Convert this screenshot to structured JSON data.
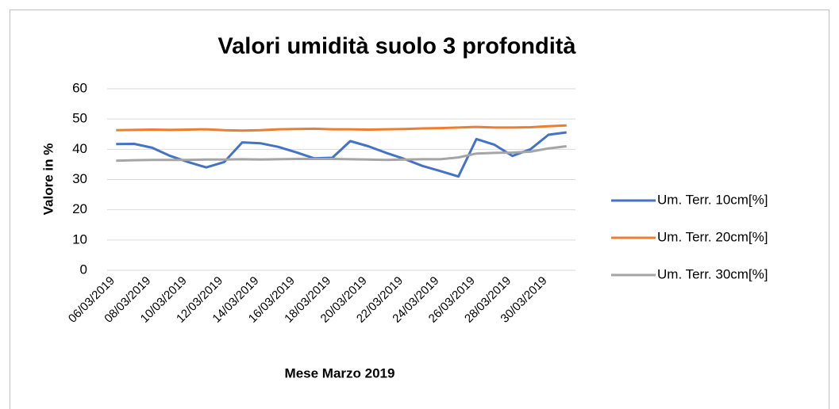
{
  "chart_data": {
    "type": "line",
    "title": "Valori umidità suolo 3 profondità",
    "x_label": "Mese Marzo 2019",
    "y_label": "Valore in %",
    "categories": [
      "06/03/2019",
      null,
      "08/03/2019",
      null,
      "10/03/2019",
      null,
      "12/03/2019",
      null,
      "14/03/2019",
      null,
      "16/03/2019",
      null,
      "18/03/2019",
      null,
      "20/03/2019",
      null,
      "22/03/2019",
      null,
      "24/03/2019",
      null,
      "26/03/2019",
      null,
      "28/03/2019",
      null,
      "30/03/2019",
      null
    ],
    "series": [
      {
        "name": "Um. Terr. 10cm[%]",
        "color": "#4472c4",
        "values": [
          41.7,
          41.8,
          40.5,
          37.8,
          35.8,
          34,
          35.8,
          42.3,
          42,
          40.8,
          39,
          37,
          37.2,
          42.7,
          41,
          38.8,
          36.8,
          34.5,
          32.8,
          31,
          43.4,
          41.5,
          37.8,
          40,
          44.8,
          45.6
        ]
      },
      {
        "name": "Um. Terr. 20cm[%]",
        "color": "#ed7d31",
        "values": [
          46.3,
          46.4,
          46.5,
          46.4,
          46.5,
          46.6,
          46.3,
          46.2,
          46.3,
          46.6,
          46.7,
          46.8,
          46.6,
          46.6,
          46.5,
          46.6,
          46.7,
          46.9,
          47,
          47.2,
          47.4,
          47.2,
          47.2,
          47.3,
          47.6,
          47.9
        ]
      },
      {
        "name": "Um. Terr. 30cm[%]",
        "color": "#a5a5a5",
        "values": [
          36.2,
          36.4,
          36.5,
          36.5,
          36.5,
          36.6,
          36.6,
          36.7,
          36.6,
          36.7,
          36.8,
          36.8,
          36.8,
          36.7,
          36.6,
          36.5,
          36.6,
          36.7,
          36.7,
          37.3,
          38.6,
          38.8,
          38.9,
          39.2,
          40.3,
          41
        ]
      }
    ],
    "ylim": [
      0,
      60
    ],
    "yticks": [
      0,
      10,
      20,
      30,
      40,
      50,
      60
    ],
    "grid": true,
    "legend": "right"
  }
}
